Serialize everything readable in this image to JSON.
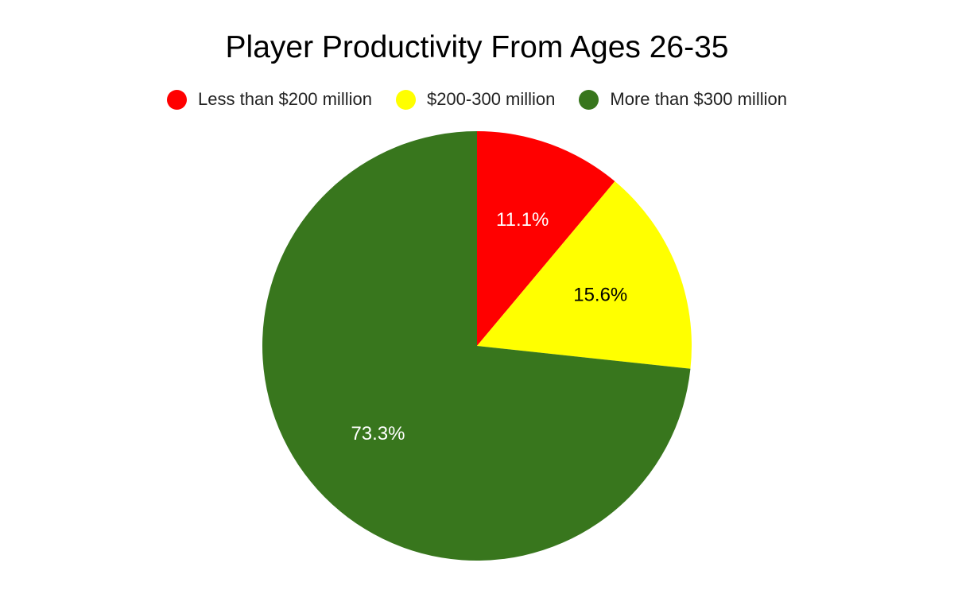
{
  "chart_data": {
    "type": "pie",
    "title": "Player Productivity From Ages 26-35",
    "legend_position": "top",
    "slices": [
      {
        "label": "Less than $200 million",
        "value": 11.1,
        "value_label": "11.1%",
        "color": "#ff0000",
        "label_color": "#ffffff"
      },
      {
        "label": "$200-300 million",
        "value": 15.6,
        "value_label": "15.6%",
        "color": "#ffff00",
        "label_color": "#000000"
      },
      {
        "label": "More than $300 million",
        "value": 73.3,
        "value_label": "73.3%",
        "color": "#38761d",
        "label_color": "#ffffff"
      }
    ]
  }
}
